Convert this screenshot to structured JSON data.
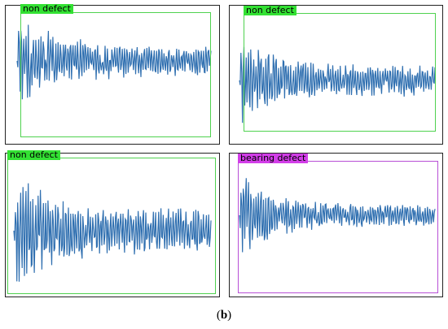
{
  "panels": [
    {
      "label": "non defect",
      "box_color": "#4fd24f",
      "label_bg": "#33e133",
      "seed": 11,
      "decay": 5.0,
      "noise": 0.3
    },
    {
      "label": "non defect",
      "box_color": "#4fd24f",
      "label_bg": "#33e133",
      "seed": 23,
      "decay": 6.0,
      "noise": 0.34
    },
    {
      "label": "non defect",
      "box_color": "#4fd24f",
      "label_bg": "#33e133",
      "seed": 37,
      "decay": 5.5,
      "noise": 0.36
    },
    {
      "label": "bearing  defect",
      "box_color": "#b84fd6",
      "label_bg": "#d23ee8",
      "seed": 53,
      "decay": 7.0,
      "noise": 0.22
    }
  ],
  "signal_color": "#2f6fb0",
  "caption": {
    "open": "(",
    "letter": "b",
    "close": ")"
  }
}
